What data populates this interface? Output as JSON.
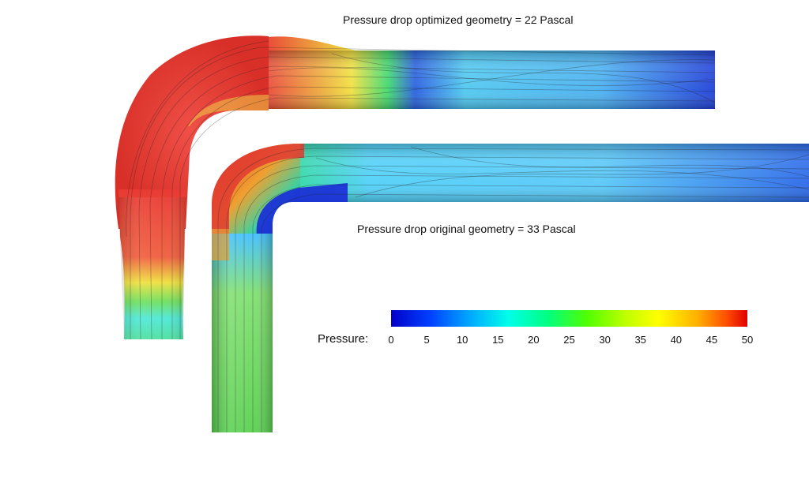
{
  "captions": {
    "optimized": "Pressure drop optimized geometry = 22 Pascal",
    "original": "Pressure drop original geometry = 33 Pascal"
  },
  "legend": {
    "title": "Pressure:",
    "min": 0,
    "max": 50,
    "ticks": [
      "0",
      "5",
      "10",
      "15",
      "20",
      "25",
      "30",
      "35",
      "40",
      "45",
      "50"
    ]
  },
  "colors": {
    "high_pressure": "#e83a33",
    "mid_pressure": "#ffff00",
    "green": "#55e055",
    "cyan": "#40e0ff",
    "low_pressure": "#1a2ad8"
  }
}
